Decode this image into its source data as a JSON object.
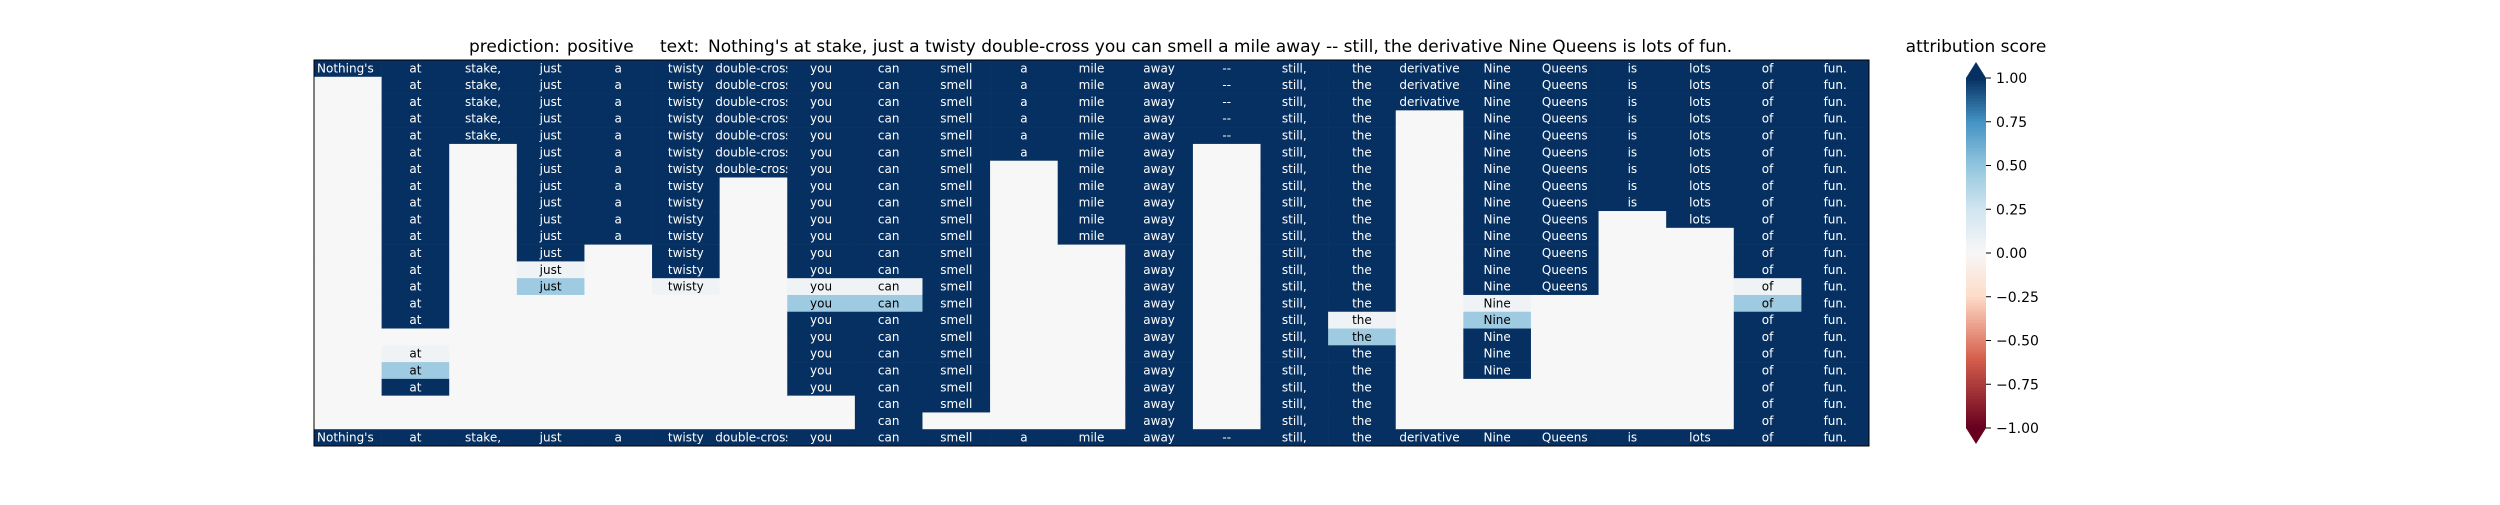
{
  "chart_data": {
    "type": "heatmap",
    "title": {
      "prediction_label": "prediction:",
      "prediction_value": "positive",
      "text_label": "text:",
      "text_value": "Nothing's at stake, just a twisty double-cross you can smell a mile away -- still, the derivative Nine Queens is lots of fun."
    },
    "columns": [
      "Nothing's",
      "at",
      "stake,",
      "just",
      "a",
      "twisty",
      "double-cross",
      "you",
      "can",
      "smell",
      "a",
      "mile",
      "away",
      "--",
      "still,",
      "the",
      "derivative",
      "Nine",
      "Queens",
      "is",
      "lots",
      "of",
      "fun."
    ],
    "rows_top_to_bottom": 23,
    "column_values": [
      [
        1,
        0,
        0,
        0,
        0,
        0,
        0,
        0,
        0,
        0,
        0,
        0,
        0,
        0,
        0,
        0,
        0,
        0,
        0,
        0,
        0,
        0,
        1
      ],
      [
        1,
        1,
        1,
        1,
        1,
        1,
        1,
        1,
        1,
        1,
        1,
        1,
        1,
        1,
        1,
        1,
        0,
        0.05,
        0.45,
        1,
        0,
        0,
        1
      ],
      [
        1,
        1,
        1,
        1,
        1,
        0,
        0,
        0,
        0,
        0,
        0,
        0,
        0,
        0,
        0,
        0,
        0,
        0,
        0,
        0,
        0,
        0,
        1
      ],
      [
        1,
        1,
        1,
        1,
        1,
        1,
        1,
        1,
        1,
        1,
        1,
        1,
        0.05,
        0.45,
        0,
        0,
        0,
        0,
        0,
        0,
        0,
        0,
        1
      ],
      [
        1,
        1,
        1,
        1,
        1,
        1,
        1,
        1,
        1,
        1,
        1,
        0,
        0,
        0,
        0,
        0,
        0,
        0,
        0,
        0,
        0,
        0,
        1
      ],
      [
        1,
        1,
        1,
        1,
        1,
        1,
        1,
        1,
        1,
        1,
        1,
        1,
        1,
        0.05,
        0,
        0,
        0,
        0,
        0,
        0,
        0,
        0,
        1
      ],
      [
        1,
        1,
        1,
        1,
        1,
        1,
        1,
        0,
        0,
        0,
        0,
        0,
        0,
        0,
        0,
        0,
        0,
        0,
        0,
        0,
        0,
        0,
        1
      ],
      [
        1,
        1,
        1,
        1,
        1,
        1,
        1,
        1,
        1,
        1,
        1,
        1,
        1,
        0.05,
        0.45,
        1,
        1,
        1,
        1,
        1,
        0,
        0,
        1
      ],
      [
        1,
        1,
        1,
        1,
        1,
        1,
        1,
        1,
        1,
        1,
        1,
        1,
        1,
        0.05,
        0.45,
        1,
        1,
        1,
        1,
        1,
        1,
        1,
        1
      ],
      [
        1,
        1,
        1,
        1,
        1,
        1,
        1,
        1,
        1,
        1,
        1,
        1,
        1,
        1,
        1,
        1,
        1,
        1,
        1,
        1,
        1,
        0,
        1
      ],
      [
        1,
        1,
        1,
        1,
        1,
        1,
        0,
        0,
        0,
        0,
        0,
        0,
        0,
        0,
        0,
        0,
        0,
        0,
        0,
        0,
        0,
        0,
        1
      ],
      [
        1,
        1,
        1,
        1,
        1,
        1,
        1,
        1,
        1,
        1,
        1,
        0,
        0,
        0,
        0,
        0,
        0,
        0,
        0,
        0,
        0,
        0,
        1
      ],
      [
        1,
        1,
        1,
        1,
        1,
        1,
        1,
        1,
        1,
        1,
        1,
        1,
        1,
        1,
        1,
        1,
        1,
        1,
        1,
        1,
        1,
        1,
        1
      ],
      [
        1,
        1,
        1,
        1,
        1,
        0,
        0,
        0,
        0,
        0,
        0,
        0,
        0,
        0,
        0,
        0,
        0,
        0,
        0,
        0,
        0,
        0,
        1
      ],
      [
        1,
        1,
        1,
        1,
        1,
        1,
        1,
        1,
        1,
        1,
        1,
        1,
        1,
        1,
        1,
        1,
        1,
        1,
        1,
        1,
        1,
        1,
        1
      ],
      [
        1,
        1,
        1,
        1,
        1,
        1,
        1,
        1,
        1,
        1,
        1,
        1,
        1,
        1,
        1,
        0.05,
        0.45,
        1,
        1,
        1,
        1,
        1,
        1
      ],
      [
        1,
        1,
        1,
        0,
        0,
        0,
        0,
        0,
        0,
        0,
        0,
        0,
        0,
        0,
        0,
        0,
        0,
        0,
        0,
        0,
        0,
        0,
        1
      ],
      [
        1,
        1,
        1,
        1,
        1,
        1,
        1,
        1,
        1,
        1,
        1,
        1,
        1,
        1,
        0.05,
        0.45,
        1,
        1,
        1,
        0,
        0,
        0,
        1
      ],
      [
        1,
        1,
        1,
        1,
        1,
        1,
        1,
        1,
        1,
        1,
        1,
        1,
        1,
        1,
        0,
        0,
        0,
        0,
        0,
        0,
        0,
        0,
        1
      ],
      [
        1,
        1,
        1,
        1,
        1,
        1,
        1,
        1,
        1,
        0,
        0,
        0,
        0,
        0,
        0,
        0,
        0,
        0,
        0,
        0,
        0,
        0,
        1
      ],
      [
        1,
        1,
        1,
        1,
        1,
        1,
        1,
        1,
        1,
        1,
        0,
        0,
        0,
        0,
        0,
        0,
        0,
        0,
        0,
        0,
        0,
        0,
        1
      ],
      [
        1,
        1,
        1,
        1,
        1,
        1,
        1,
        1,
        1,
        1,
        1,
        1,
        1,
        0.05,
        0.45,
        1,
        1,
        1,
        1,
        1,
        1,
        1,
        1
      ],
      [
        1,
        1,
        1,
        1,
        1,
        1,
        1,
        1,
        1,
        1,
        1,
        1,
        1,
        1,
        1,
        1,
        1,
        1,
        1,
        1,
        1,
        1,
        1
      ]
    ],
    "colorbar": {
      "title": "attribution score",
      "ticks": [
        "1.00",
        "0.75",
        "0.50",
        "0.25",
        "0.00",
        "−0.25",
        "−0.50",
        "−0.75",
        "−1.00"
      ],
      "tick_values": [
        1.0,
        0.75,
        0.5,
        0.25,
        0.0,
        -0.25,
        -0.5,
        -0.75,
        -1.0
      ],
      "vmin": -1.0,
      "vmax": 1.0,
      "extend": "both"
    }
  }
}
